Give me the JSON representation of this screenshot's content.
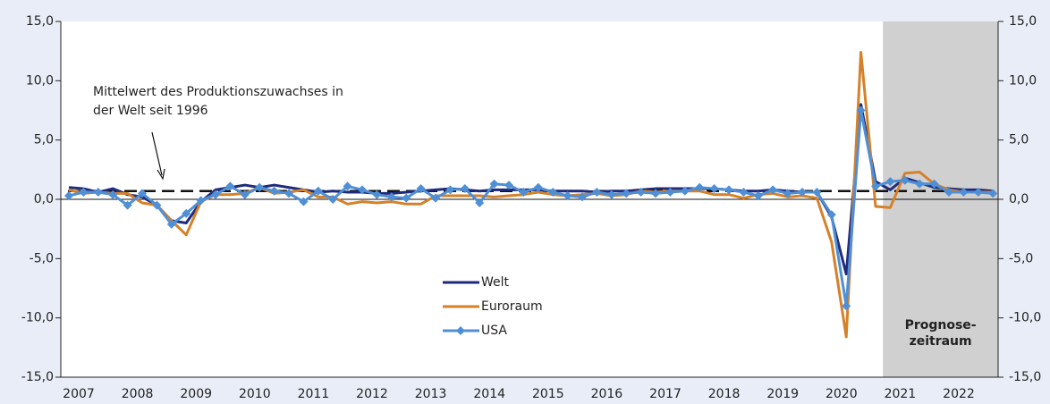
{
  "chart_data": {
    "type": "line",
    "categories": [
      "2007",
      null,
      null,
      null,
      "2008",
      null,
      null,
      null,
      "2009",
      null,
      null,
      null,
      "2010",
      null,
      null,
      null,
      "2011",
      null,
      null,
      null,
      "2012",
      null,
      null,
      null,
      "2013",
      null,
      null,
      null,
      "2014",
      null,
      null,
      null,
      "2015",
      null,
      null,
      null,
      "2016",
      null,
      null,
      null,
      "2017",
      null,
      null,
      null,
      "2018",
      null,
      null,
      null,
      "2019",
      null,
      null,
      null,
      "2020",
      null,
      null,
      null,
      "2021",
      null,
      null,
      null,
      "2022",
      null,
      null,
      null
    ],
    "series": [
      {
        "name": "Welt",
        "color": "#1f2a7a",
        "marker": false,
        "values": [
          1.0,
          0.9,
          0.6,
          0.9,
          0.4,
          0.2,
          -0.5,
          -1.8,
          -2.0,
          -0.2,
          0.8,
          1.0,
          1.2,
          1.0,
          1.2,
          1.0,
          0.8,
          0.6,
          0.7,
          0.6,
          0.6,
          0.5,
          0.5,
          0.6,
          0.7,
          0.8,
          0.9,
          0.8,
          0.7,
          0.8,
          0.8,
          0.8,
          0.8,
          0.7,
          0.7,
          0.7,
          0.6,
          0.7,
          0.7,
          0.8,
          0.9,
          0.9,
          0.9,
          0.9,
          0.9,
          0.8,
          0.7,
          0.7,
          0.8,
          0.7,
          0.6,
          0.6,
          -1.5,
          -6.3,
          8.0,
          1.5,
          0.8,
          1.8,
          1.4,
          1.0,
          0.9,
          0.8,
          0.8,
          0.7
        ]
      },
      {
        "name": "Euroraum",
        "color": "#d4812a",
        "marker": false,
        "values": [
          0.8,
          0.5,
          0.6,
          0.5,
          0.5,
          -0.3,
          -0.5,
          -1.8,
          -3.0,
          -0.2,
          0.4,
          0.4,
          0.5,
          1.0,
          0.5,
          0.6,
          0.8,
          0.2,
          0.2,
          -0.4,
          -0.2,
          -0.3,
          -0.2,
          -0.4,
          -0.4,
          0.3,
          0.3,
          0.3,
          0.3,
          0.2,
          0.3,
          0.4,
          0.6,
          0.4,
          0.3,
          0.4,
          0.5,
          0.3,
          0.4,
          0.7,
          0.6,
          0.7,
          0.7,
          0.7,
          0.4,
          0.4,
          0.1,
          0.4,
          0.5,
          0.2,
          0.3,
          0.1,
          -3.6,
          -11.6,
          12.4,
          -0.6,
          -0.7,
          2.2,
          2.3,
          1.3,
          0.8,
          0.6,
          0.6,
          0.6
        ]
      },
      {
        "name": "USA",
        "color": "#4f8fd6",
        "marker": true,
        "values": [
          0.3,
          0.6,
          0.6,
          0.4,
          -0.5,
          0.5,
          -0.5,
          -2.1,
          -1.2,
          -0.1,
          0.4,
          1.1,
          0.4,
          1.0,
          0.7,
          0.5,
          -0.2,
          0.7,
          0.0,
          1.1,
          0.8,
          0.4,
          0.2,
          0.1,
          0.9,
          0.1,
          0.8,
          0.9,
          -0.3,
          1.3,
          1.2,
          0.6,
          1.0,
          0.6,
          0.3,
          0.2,
          0.6,
          0.4,
          0.5,
          0.6,
          0.5,
          0.6,
          0.7,
          1.0,
          0.9,
          0.8,
          0.6,
          0.3,
          0.8,
          0.5,
          0.6,
          0.6,
          -1.3,
          -9.0,
          7.5,
          1.1,
          1.5,
          1.6,
          1.3,
          1.3,
          0.6,
          0.6,
          0.6,
          0.5
        ]
      }
    ],
    "mean_line": {
      "value": 0.7,
      "annotation": [
        "Mittelwert des Produktionszuwachses in",
        "der Welt seit 1996"
      ]
    },
    "forecast": {
      "from_index": 55,
      "label": [
        "Prognose-",
        "zeitraum"
      ]
    },
    "ylim": [
      -15,
      15
    ],
    "yticks": [
      {
        "value": -15,
        "label": "-15,0"
      },
      {
        "value": -10,
        "label": "-10,0"
      },
      {
        "value": -5,
        "label": "-5,0"
      },
      {
        "value": 0,
        "label": "0,0"
      },
      {
        "value": 5,
        "label": "5,0"
      },
      {
        "value": 10,
        "label": "10,0"
      },
      {
        "value": 15,
        "label": "15,0"
      }
    ],
    "y2lim": [
      -15,
      15
    ],
    "y2ticks": [
      {
        "value": -15,
        "label": "-15,0"
      },
      {
        "value": -10,
        "label": "-10,0"
      },
      {
        "value": -5,
        "label": "-5,0"
      },
      {
        "value": 0,
        "label": "0,0"
      },
      {
        "value": 5,
        "label": "5,0"
      },
      {
        "value": 10,
        "label": "10,0"
      },
      {
        "value": 15,
        "label": "15,0"
      }
    ]
  }
}
